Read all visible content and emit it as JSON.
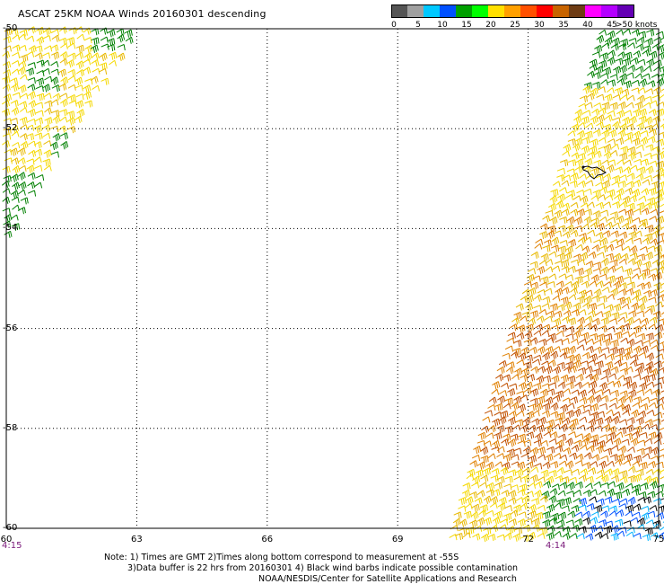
{
  "header": {
    "title": "ASCAT 25KM NOAA Winds 20160301 descending"
  },
  "legend": {
    "unit_label": ">50 knots",
    "ticks": [
      "0",
      "5",
      "10",
      "15",
      "20",
      "25",
      "30",
      "35",
      "40",
      "45"
    ],
    "colors": [
      "#555555",
      "#a0a0a0",
      "#00c8ff",
      "#0050ff",
      "#00a000",
      "#00ff00",
      "#ffe000",
      "#ffa000",
      "#ff5000",
      "#ff0000",
      "#c86400",
      "#6e3c14",
      "#ff00ff",
      "#b400ff",
      "#6400b4"
    ]
  },
  "axes": {
    "lon_labels": [
      "60",
      "63",
      "66",
      "69",
      "72",
      "75"
    ],
    "lat_labels": [
      "-50",
      "-52",
      "-54",
      "-56",
      "-58",
      "-60"
    ],
    "time_left": "4:15",
    "time_right": "4:14"
  },
  "notes": {
    "line1": "Note: 1) Times are GMT 2)Times along bottom correspond to measurement at -55S",
    "line2": "3)Data buffer is 22 hrs from 20160301 4) Black wind barbs indicate possible contamination",
    "line3": "NOAA/NESDIS/Center for Satellite Applications and Research"
  },
  "map": {
    "lon_range": [
      60,
      75
    ],
    "lat_range": [
      -60,
      -50
    ],
    "swaths": [
      "upper-left swath",
      "right swath"
    ],
    "barb_colors": {
      "yellow": "#f5d800",
      "gold": "#e8b800",
      "orange": "#e08000",
      "dark_orange": "#c05000",
      "green": "#008000",
      "blue": "#0050ff",
      "cyan": "#00b4ff",
      "black": "#000000"
    }
  }
}
